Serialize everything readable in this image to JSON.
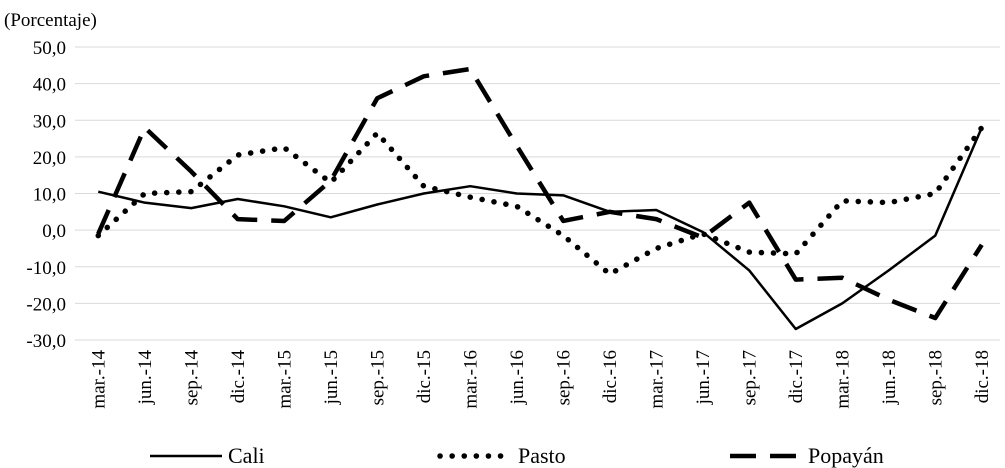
{
  "chart_data": {
    "type": "line",
    "y_label": "(Porcentaje)",
    "categories": [
      "mar.-14",
      "jun.-14",
      "sep.-14",
      "dic.-14",
      "mar.-15",
      "jun.-15",
      "sep.-15",
      "dic.-15",
      "mar.-16",
      "jun.-16",
      "sep.-16",
      "dic.-16",
      "mar.-17",
      "jun.-17",
      "sep.-17",
      "dic.-17",
      "mar.-18",
      "jun.-18",
      "sep.-18",
      "dic.-18"
    ],
    "series": [
      {
        "name": "Cali",
        "color": "#000000",
        "dash": "solid",
        "values": [
          10.5,
          7.5,
          6,
          8.5,
          6.5,
          3.5,
          7,
          10,
          12,
          10,
          9.5,
          5,
          5.5,
          -0.5,
          -11,
          -27,
          -20,
          -11,
          -1.5,
          28
        ]
      },
      {
        "name": "Pasto",
        "color": "#000000",
        "dash": "dotted",
        "values": [
          -1.5,
          10,
          10.5,
          20.5,
          22.5,
          13,
          26.5,
          12,
          9,
          6.5,
          -1.5,
          -12,
          -5,
          -1,
          -6,
          -6.5,
          8,
          7.5,
          10,
          28
        ]
      },
      {
        "name": "Popayán",
        "color": "#000000",
        "dash": "dashed",
        "values": [
          -1,
          28,
          16,
          3,
          2.5,
          13.5,
          36,
          42,
          44,
          23,
          2.5,
          5,
          3,
          -2,
          7.5,
          -13.5,
          -13,
          -19,
          -24,
          -4
        ]
      }
    ],
    "ylim": [
      -30,
      50
    ],
    "yticks": [
      {
        "value": -30,
        "label": "-30,0"
      },
      {
        "value": -20,
        "label": "-20,0"
      },
      {
        "value": -10,
        "label": "-10,0"
      },
      {
        "value": 0,
        "label": "0,0"
      },
      {
        "value": 10,
        "label": "10,0"
      },
      {
        "value": 20,
        "label": "20,0"
      },
      {
        "value": 30,
        "label": "30,0"
      },
      {
        "value": 40,
        "label": "40,0"
      },
      {
        "value": 50,
        "label": "50,0"
      }
    ],
    "grid": true,
    "legend": "bottom"
  }
}
